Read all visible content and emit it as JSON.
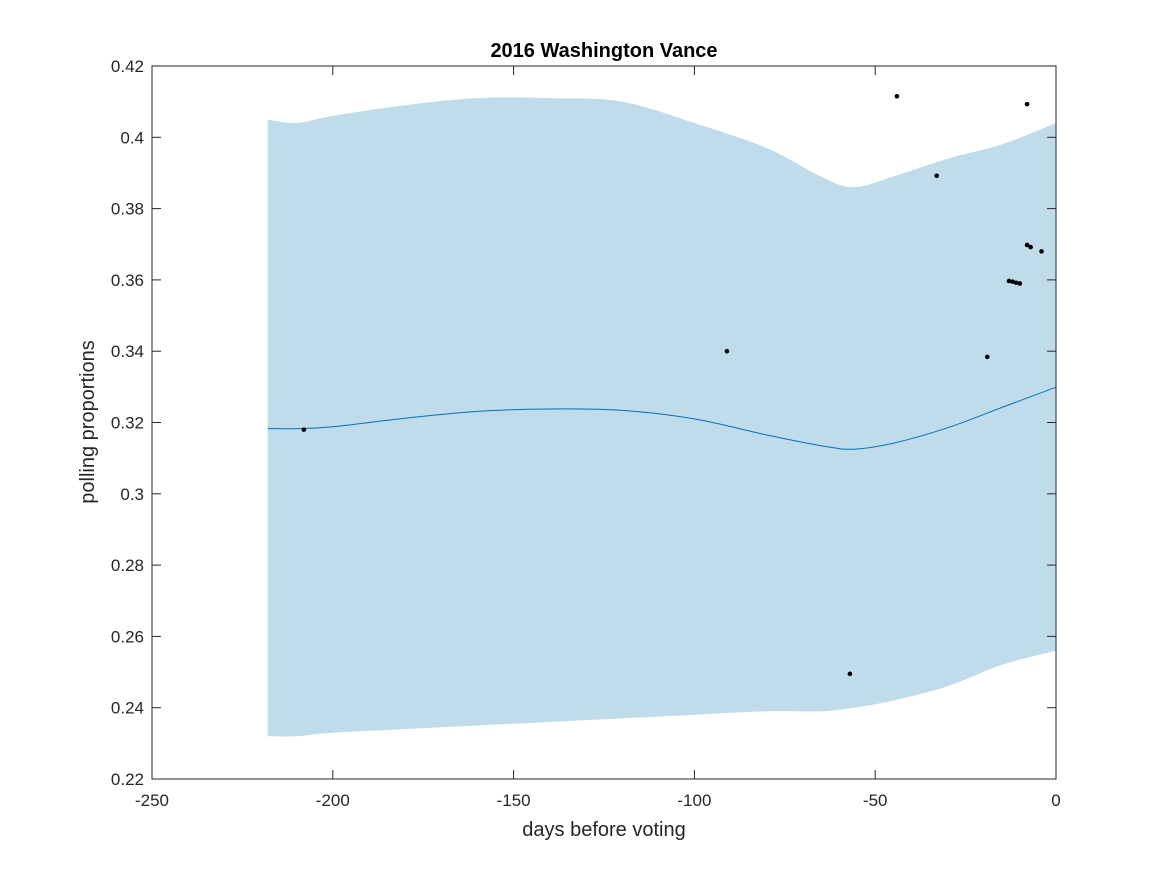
{
  "chart_data": {
    "type": "line",
    "title": "2016 Washington Vance",
    "xlabel": "days before voting",
    "ylabel": "polling proportions",
    "xlim": [
      -250,
      0
    ],
    "ylim": [
      0.22,
      0.42
    ],
    "xticks": [
      -250,
      -200,
      -150,
      -100,
      -50,
      0
    ],
    "xtick_labels": [
      "-250",
      "-200",
      "-150",
      "-100",
      "-50",
      "0"
    ],
    "yticks": [
      0.22,
      0.24,
      0.26,
      0.28,
      0.3,
      0.32,
      0.34,
      0.36,
      0.38,
      0.4,
      0.42
    ],
    "ytick_labels": [
      "0.22",
      "0.24",
      "0.26",
      "0.28",
      "0.3",
      "0.32",
      "0.34",
      "0.36",
      "0.38",
      "0.4",
      "0.42"
    ],
    "grid": false,
    "colors": {
      "band": "#c0dcea",
      "line": "#0072bd",
      "points": "#000000",
      "axes": "#262626"
    },
    "series": [
      {
        "kind": "band",
        "x": [
          -218,
          -210,
          -200,
          -180,
          -160,
          -140,
          -120,
          -100,
          -80,
          -65,
          -56,
          -45,
          -30,
          -15,
          0
        ],
        "upper": [
          0.405,
          0.404,
          0.406,
          0.409,
          0.411,
          0.411,
          0.41,
          0.404,
          0.397,
          0.389,
          0.386,
          0.389,
          0.394,
          0.398,
          0.404
        ],
        "lower": [
          0.232,
          0.232,
          0.233,
          0.234,
          0.235,
          0.236,
          0.237,
          0.238,
          0.239,
          0.239,
          0.24,
          0.242,
          0.246,
          0.252,
          0.256
        ]
      },
      {
        "kind": "line",
        "x": [
          -218,
          -210,
          -200,
          -180,
          -160,
          -140,
          -120,
          -100,
          -80,
          -65,
          -56,
          -45,
          -30,
          -15,
          0
        ],
        "y": [
          0.3183,
          0.3183,
          0.3188,
          0.3212,
          0.3231,
          0.3238,
          0.3234,
          0.321,
          0.3165,
          0.3135,
          0.3125,
          0.3142,
          0.3185,
          0.3242,
          0.3299
        ]
      },
      {
        "kind": "scatter",
        "x": [
          -208,
          -91,
          -57,
          -44,
          -33,
          -19,
          -13,
          -12,
          -11,
          -10,
          -8,
          -8,
          -7,
          -4
        ],
        "y": [
          0.318,
          0.34,
          0.2495,
          0.4115,
          0.3892,
          0.3384,
          0.3597,
          0.3595,
          0.3592,
          0.359,
          0.4093,
          0.3698,
          0.3692,
          0.368
        ]
      }
    ]
  }
}
